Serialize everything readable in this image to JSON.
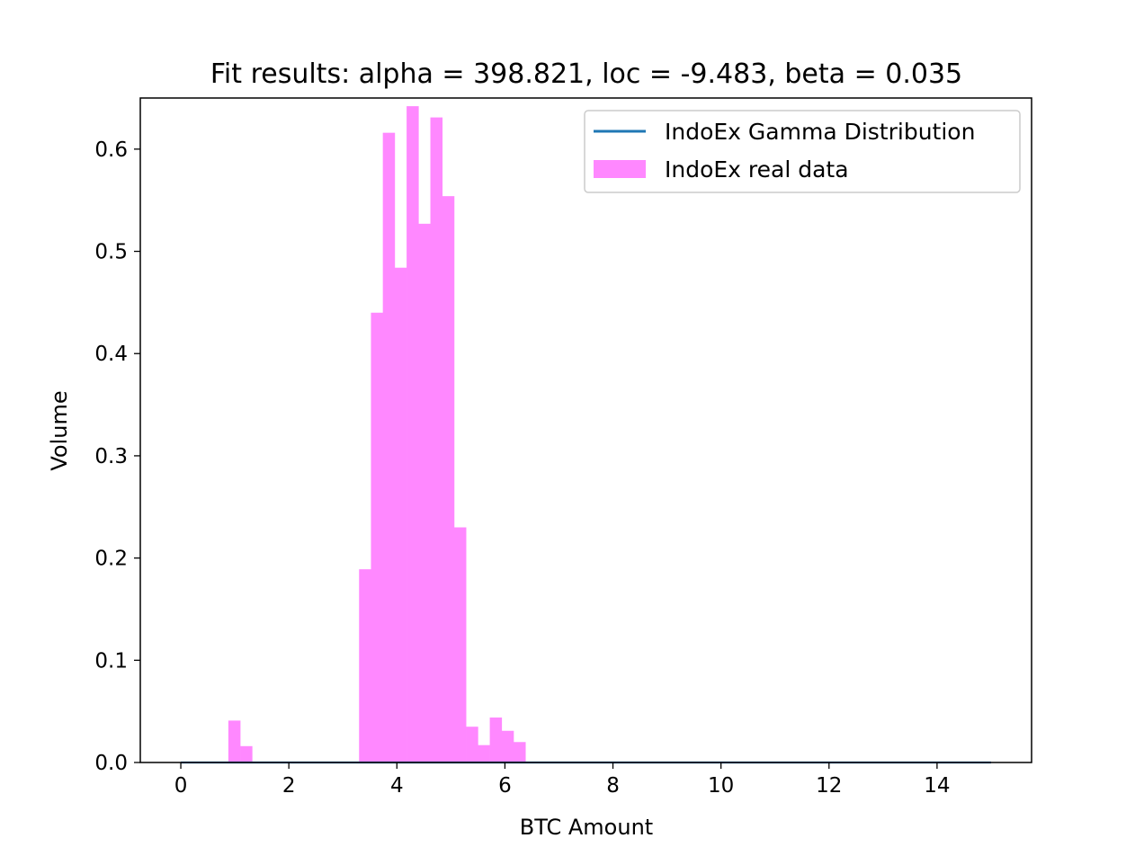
{
  "chart_data": {
    "type": "bar",
    "title": "Fit results: alpha = 398.821,  loc = -9.483, beta = 0.035",
    "xlabel": "BTC Amount",
    "ylabel": "Volume",
    "xlim": [
      -0.75,
      15.75
    ],
    "ylim": [
      0,
      0.65
    ],
    "xticks": [
      0,
      2,
      4,
      6,
      8,
      10,
      12,
      14
    ],
    "yticks": [
      0.0,
      0.1,
      0.2,
      0.3,
      0.4,
      0.5,
      0.6
    ],
    "ytick_labels": [
      "0.0",
      "0.1",
      "0.2",
      "0.3",
      "0.4",
      "0.5",
      "0.6"
    ],
    "grid": false,
    "legend_position": "top-right",
    "histogram": {
      "name": "IndoEx real data",
      "color": "#ff88ff",
      "bin_edges": [
        0.0,
        0.22,
        0.44,
        0.66,
        0.88,
        1.1,
        1.32,
        1.54,
        1.76,
        1.98,
        2.2,
        2.42,
        2.64,
        2.86,
        3.08,
        3.3,
        3.52,
        3.74,
        3.96,
        4.18,
        4.4,
        4.62,
        4.84,
        5.06,
        5.28,
        5.5,
        5.72,
        5.94,
        6.16,
        6.38,
        6.6
      ],
      "values": [
        0,
        0,
        0,
        0,
        0.041,
        0.016,
        0,
        0,
        0,
        0,
        0,
        0,
        0,
        0,
        0,
        0.189,
        0.44,
        0.616,
        0.484,
        0.642,
        0.527,
        0.631,
        0.554,
        0.23,
        0.035,
        0.017,
        0.044,
        0.031,
        0.02,
        0
      ]
    },
    "line": {
      "name": "IndoEx Gamma Distribution",
      "color": "#1f77b4",
      "x": [
        0,
        15
      ],
      "y": [
        0,
        0
      ]
    }
  }
}
